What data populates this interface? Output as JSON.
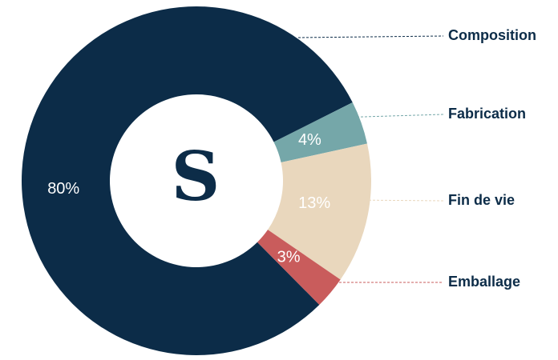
{
  "chart_data": {
    "type": "donut",
    "center_label": "S",
    "categories": [
      "Composition",
      "Fabrication",
      "Fin de vie",
      "Emballage"
    ],
    "values": [
      80,
      4,
      13,
      3
    ],
    "value_labels": [
      "80%",
      "4%",
      "13%",
      "3%"
    ],
    "colors": [
      "#0c2c48",
      "#75a7a9",
      "#e9d7bd",
      "#c95c5c"
    ]
  }
}
